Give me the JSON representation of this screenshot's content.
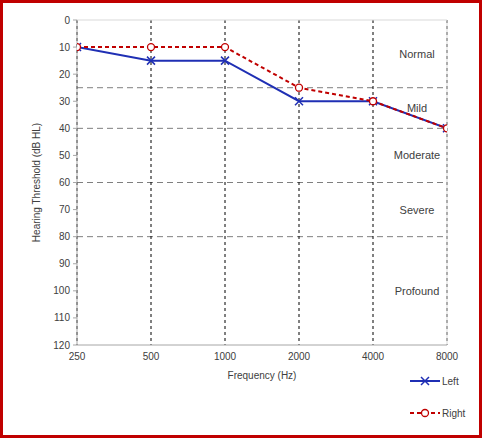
{
  "chart_data": {
    "type": "line",
    "x_label": "Frequency (Hz)",
    "y_label": "Hearing Threshold (dB HL)",
    "x": [
      250,
      500,
      1000,
      2000,
      4000,
      8000
    ],
    "log": "x",
    "xlim": [
      250,
      8000
    ],
    "xticks": [
      250,
      500,
      1000,
      2000,
      4000,
      8000
    ],
    "ylim": [
      120,
      0
    ],
    "yticks": [
      0,
      10,
      20,
      30,
      40,
      50,
      60,
      70,
      80,
      90,
      100,
      110,
      120
    ],
    "grid": true,
    "legend": "lower right",
    "series": [
      {
        "name": "Left",
        "color": "#1f2fb4",
        "marker": "x",
        "line_style": "solid",
        "values": [
          10,
          15,
          15,
          30,
          30,
          40
        ]
      },
      {
        "name": "Right",
        "color": "#c00000",
        "marker": "circle",
        "line_style": "dashed",
        "values": [
          10,
          10,
          10,
          25,
          30,
          40
        ]
      }
    ],
    "bands": [
      {
        "label": "Normal",
        "range": [
          0,
          25
        ]
      },
      {
        "label": "Mild",
        "range": [
          25,
          40
        ]
      },
      {
        "label": "Moderate",
        "range": [
          40,
          60
        ]
      },
      {
        "label": "Severe",
        "range": [
          60,
          80
        ]
      },
      {
        "label": "Profound",
        "range": [
          80,
          120
        ]
      }
    ]
  }
}
